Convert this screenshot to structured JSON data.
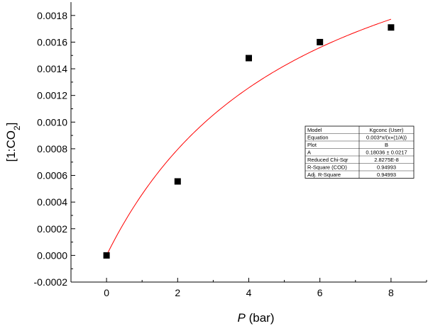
{
  "chart_data": {
    "type": "scatter",
    "title": "",
    "xlabel": {
      "italic": "P",
      "rest": " (bar)"
    },
    "ylabel": {
      "main": "[1:CO",
      "sub": "2",
      "close": "]"
    },
    "xlim": [
      -1,
      9
    ],
    "ylim": [
      -0.0002,
      0.0019
    ],
    "xticks": [
      0,
      2,
      4,
      6,
      8
    ],
    "xtick_labels": [
      "0",
      "2",
      "4",
      "6",
      "8"
    ],
    "yticks": [
      -0.0002,
      0,
      0.0002,
      0.0004,
      0.0006,
      0.0008,
      0.001,
      0.0012,
      0.0014,
      0.0016,
      0.0018
    ],
    "ytick_labels": [
      "-0.0002",
      "0.0000",
      "0.0002",
      "0.0004",
      "0.0006",
      "0.0008",
      "0.0010",
      "0.0012",
      "0.0014",
      "0.0016",
      "0.0018"
    ],
    "series": [
      {
        "name": "B",
        "marker": "square",
        "color": "#000000",
        "x": [
          0,
          2,
          4,
          6,
          8
        ],
        "y": [
          0.0,
          0.000555,
          0.00148,
          0.0016,
          0.00171
        ]
      }
    ],
    "fit": {
      "name": "Kgconc (User) fit",
      "color": "#ff0000",
      "a": 0.003,
      "A": 0.18036,
      "x_range": [
        0,
        8
      ]
    },
    "stats_table": {
      "position": "center-right",
      "rows": [
        [
          "Model",
          "Kgconc (User)"
        ],
        [
          "Equation",
          "0.003*x/(x+(1/A))"
        ],
        [
          "Plot",
          "B"
        ],
        [
          "A",
          "0.18036 ± 0.0217"
        ],
        [
          "Reduced Chi-Sqr",
          "2.8275E-8"
        ],
        [
          "R-Square (COD)",
          "0.94993"
        ],
        [
          "Adj. R-Square",
          "0.94993"
        ]
      ]
    }
  }
}
